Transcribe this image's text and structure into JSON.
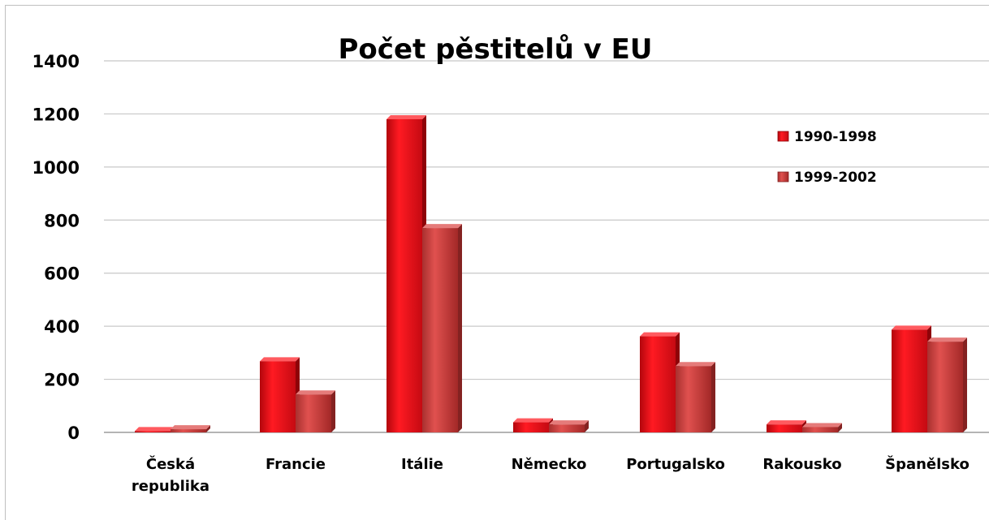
{
  "chart_data": {
    "type": "bar",
    "title": "Počet pěstitelů v EU",
    "xlabel": "",
    "ylabel": "",
    "ylim": [
      0,
      1400
    ],
    "yticks": [
      0,
      200,
      400,
      600,
      800,
      1000,
      1200,
      1400
    ],
    "grid": true,
    "legend_position": "top-right",
    "categories": [
      [
        "Česká",
        "republika"
      ],
      [
        "Francie"
      ],
      [
        "Itálie"
      ],
      [
        "Německo"
      ],
      [
        "Portugalsko"
      ],
      [
        "Rakousko"
      ],
      [
        "Španělsko"
      ]
    ],
    "series": [
      {
        "name": "1990-1998",
        "color": "#e8141e",
        "values": [
          5,
          268,
          1180,
          38,
          362,
          30,
          387
        ]
      },
      {
        "name": "1999-2002",
        "color": "#d4403f",
        "values": [
          12,
          143,
          770,
          30,
          250,
          20,
          342
        ]
      }
    ]
  }
}
